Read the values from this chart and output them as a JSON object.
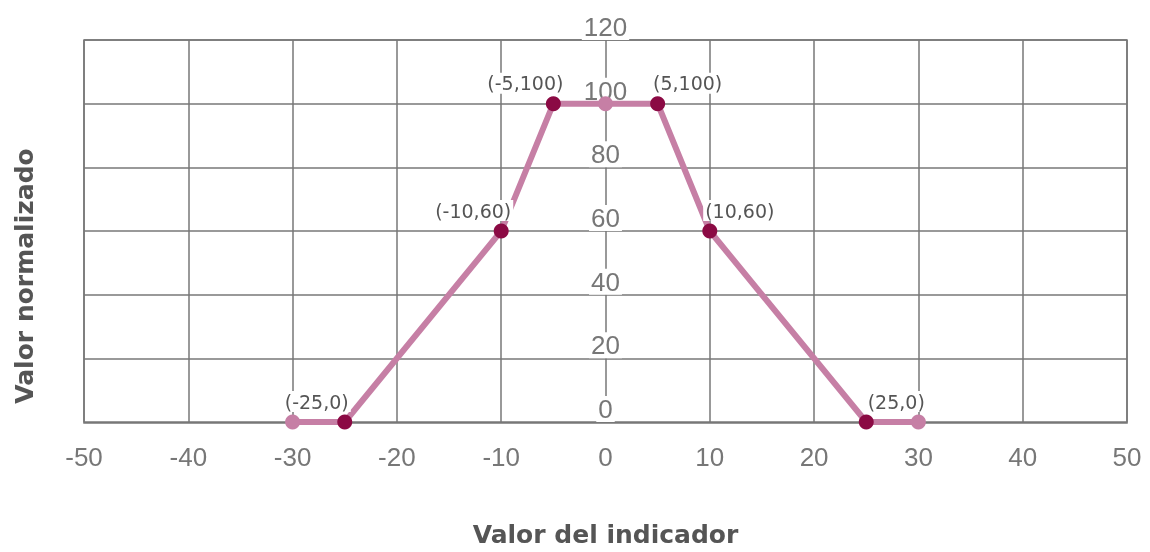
{
  "chart_data": {
    "type": "line",
    "xlabel": "Valor del indicador",
    "ylabel": "Valor normalizado",
    "x": [
      -30,
      -25,
      -10,
      -5,
      0,
      5,
      10,
      25,
      30
    ],
    "series": [
      {
        "color": "#c67fa5",
        "values": [
          0,
          0,
          60,
          100,
          100,
          100,
          60,
          0,
          0
        ],
        "colors": [
          "#c67fa5",
          "#8b0a44",
          "#8b0a44",
          "#8b0a44",
          "#c67fa5",
          "#8b0a44",
          "#8b0a44",
          "#8b0a44",
          "#c67fa5"
        ]
      }
    ],
    "annotations": [
      {
        "text": "(-25,0)",
        "x": -25,
        "y": 0
      },
      {
        "text": "(-10,60)",
        "x": -10,
        "y": 60
      },
      {
        "text": "(-5,100)",
        "x": -5,
        "y": 100
      },
      {
        "text": "(5,100)",
        "x": 5,
        "y": 100
      },
      {
        "text": "(10,60)",
        "x": 10,
        "y": 60
      },
      {
        "text": "(25,0)",
        "x": 25,
        "y": 0
      }
    ],
    "xlim": [
      -50,
      50
    ],
    "xticks": [
      -50,
      -40,
      -30,
      -20,
      -10,
      0,
      10,
      20,
      30,
      40,
      50
    ],
    "ylim": [
      0,
      120
    ],
    "yticks": [
      0,
      20,
      40,
      60,
      80,
      100,
      120
    ],
    "grid": true,
    "marker": "circle",
    "line_style": "solid"
  }
}
